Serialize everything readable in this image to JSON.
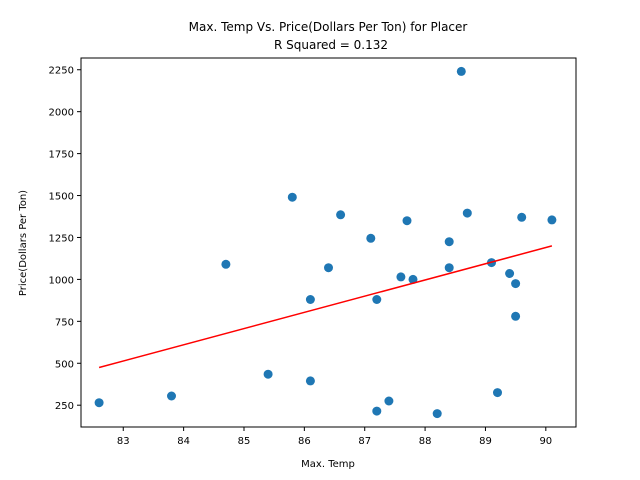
{
  "chart_data": {
    "type": "scatter",
    "title": "Max. Temp Vs. Price(Dollars Per Ton) for Placer",
    "subtitle": "R Squared =  0.132",
    "xlabel": "Max. Temp",
    "ylabel": "Price(Dollars Per Ton)",
    "xlim": [
      82.3,
      90.5
    ],
    "ylim": [
      120,
      2320
    ],
    "xticks": [
      83,
      84,
      85,
      86,
      87,
      88,
      89,
      90
    ],
    "yticks": [
      250,
      500,
      750,
      1000,
      1250,
      1500,
      1750,
      2000,
      2250
    ],
    "grid": false,
    "series": [
      {
        "kind": "scatter",
        "color": "#1f77b4",
        "points": [
          [
            82.6,
            265
          ],
          [
            83.8,
            305
          ],
          [
            84.7,
            1090
          ],
          [
            85.4,
            435
          ],
          [
            85.8,
            1490
          ],
          [
            86.1,
            880
          ],
          [
            86.1,
            395
          ],
          [
            86.4,
            1070
          ],
          [
            86.6,
            1385
          ],
          [
            87.1,
            1245
          ],
          [
            87.2,
            880
          ],
          [
            87.2,
            215
          ],
          [
            87.4,
            275
          ],
          [
            87.6,
            1015
          ],
          [
            87.7,
            1350
          ],
          [
            87.8,
            1000
          ],
          [
            88.2,
            200
          ],
          [
            88.4,
            1225
          ],
          [
            88.4,
            1070
          ],
          [
            88.6,
            2240
          ],
          [
            88.7,
            1395
          ],
          [
            89.1,
            1100
          ],
          [
            89.2,
            325
          ],
          [
            89.4,
            1035
          ],
          [
            89.5,
            975
          ],
          [
            89.5,
            780
          ],
          [
            89.6,
            1370
          ],
          [
            90.1,
            1355
          ]
        ]
      },
      {
        "kind": "line",
        "color": "#ff0000",
        "points": [
          [
            82.6,
            475
          ],
          [
            90.1,
            1200
          ]
        ]
      }
    ]
  }
}
